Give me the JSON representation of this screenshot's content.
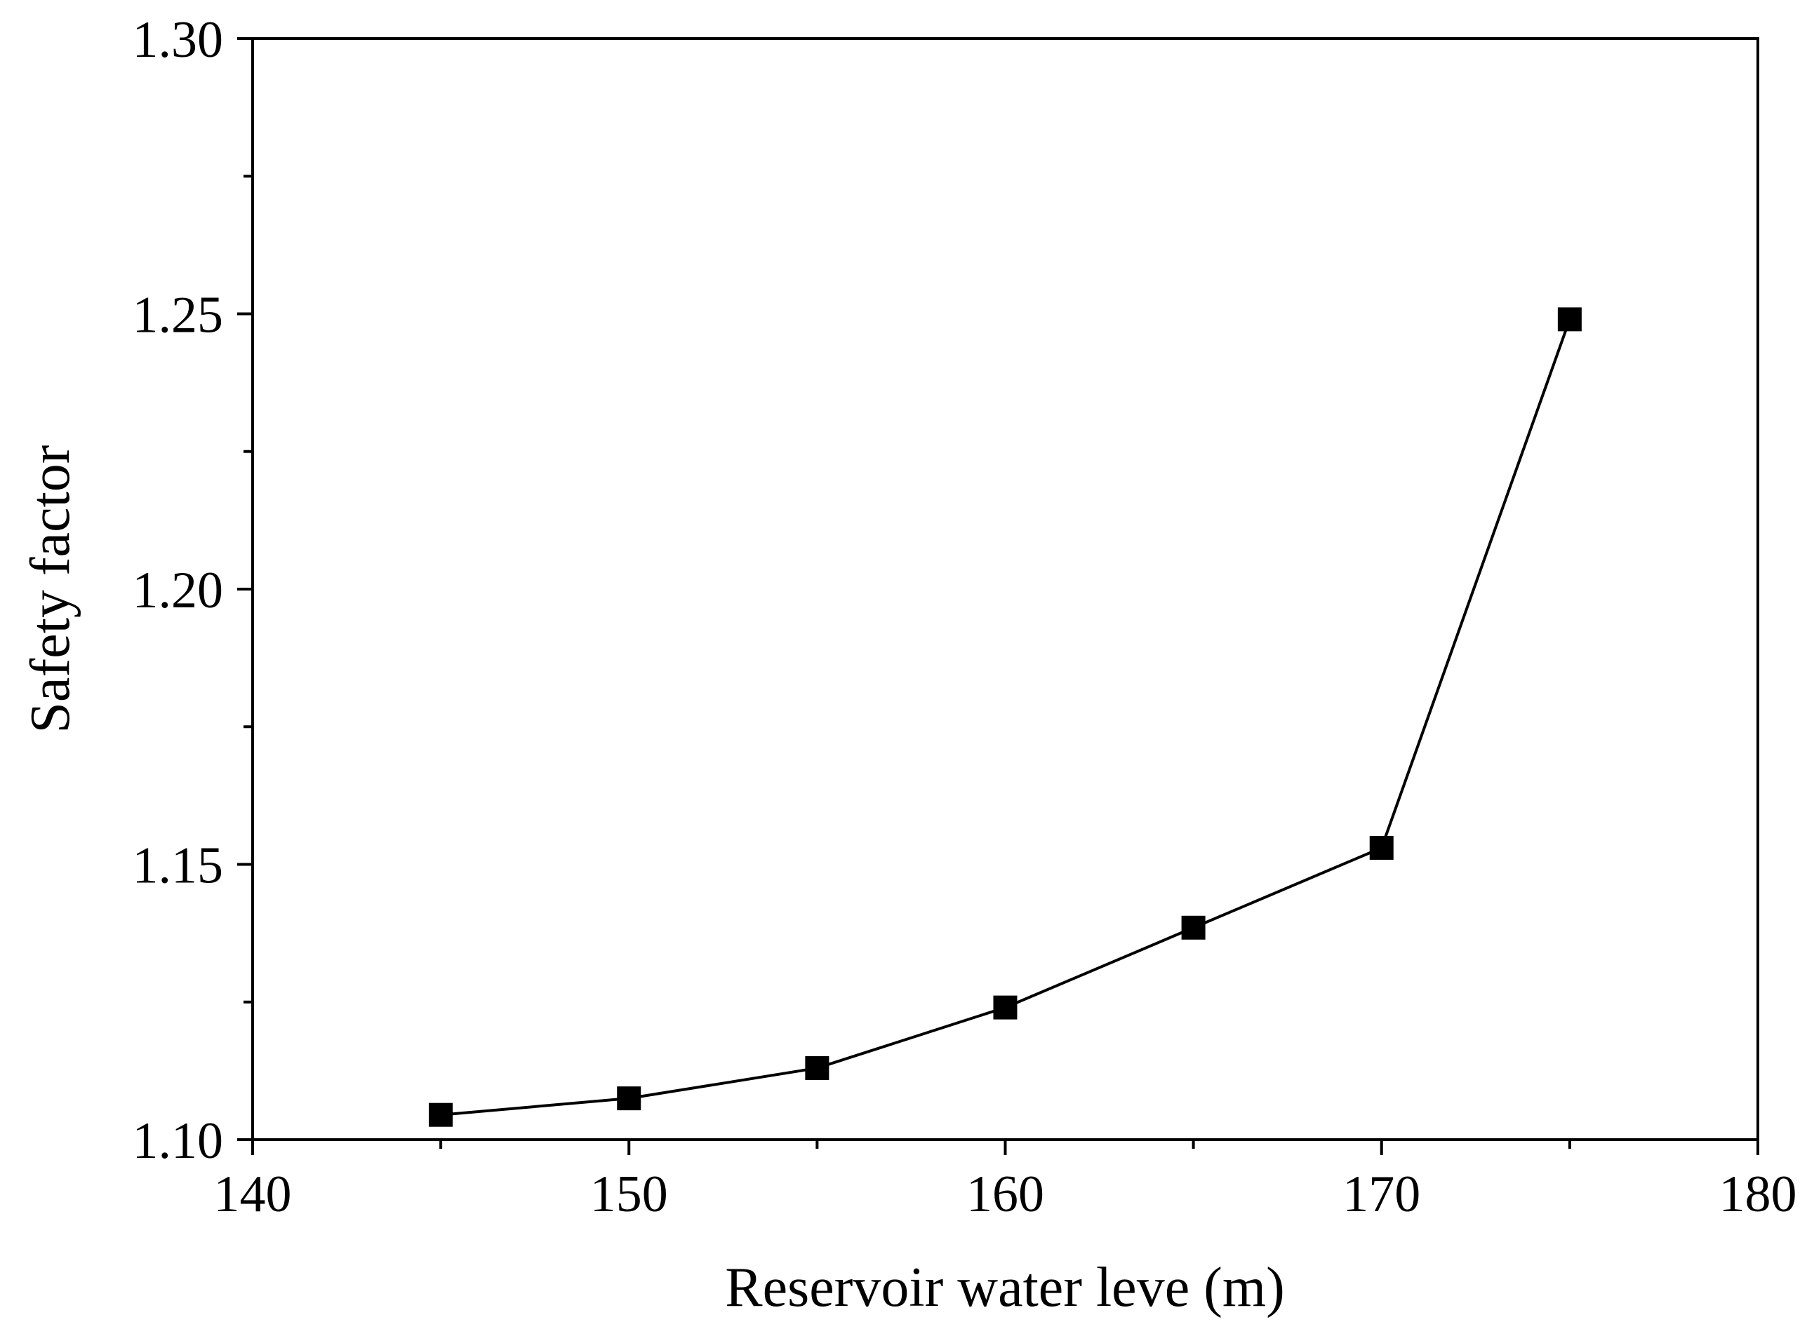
{
  "chart_data": {
    "type": "line",
    "title": "",
    "xlabel": "Reservoir water leve (m)",
    "ylabel": "Safety factor",
    "xlim": [
      140,
      180
    ],
    "ylim": [
      1.1,
      1.3
    ],
    "x_ticks": [
      140,
      150,
      160,
      170,
      180
    ],
    "y_ticks": [
      1.1,
      1.15,
      1.2,
      1.25,
      1.3
    ],
    "x_tick_labels": [
      "140",
      "150",
      "160",
      "170",
      "180"
    ],
    "y_tick_labels": [
      "1.10",
      "1.15",
      "1.20",
      "1.25",
      "1.30"
    ],
    "grid": false,
    "marker": "square",
    "color": "#000000",
    "series": [
      {
        "name": "Safety factor",
        "x": [
          145,
          150,
          155,
          160,
          165,
          170,
          175
        ],
        "values": [
          1.1045,
          1.1075,
          1.113,
          1.124,
          1.1385,
          1.153,
          1.249
        ]
      }
    ]
  }
}
